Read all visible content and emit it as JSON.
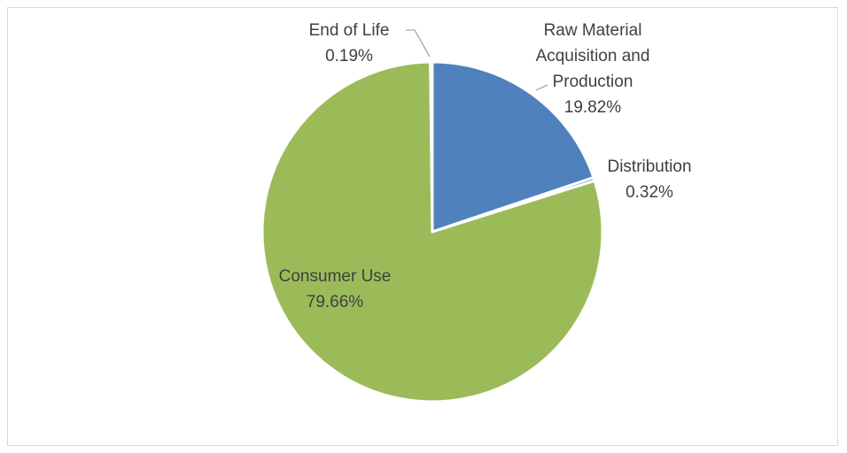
{
  "chart_data": {
    "type": "pie",
    "title": "",
    "categories": [
      "Raw Material Acquisition and Production",
      "Distribution",
      "Consumer Use",
      "End of Life"
    ],
    "values": [
      19.82,
      0.32,
      79.66,
      0.19
    ],
    "value_labels": [
      "19.82%",
      "0.32%",
      "79.66%",
      "0.19%"
    ],
    "colors": [
      "#4F81BD",
      "#4F81BD",
      "#9BBB59",
      "#9BBB59"
    ],
    "start_angle_deg": 0,
    "direction": "clockwise",
    "legend": "none",
    "label_lines": [
      [
        "Raw Material",
        "Acquisition and",
        "Production",
        "19.82%"
      ],
      [
        "Distribution",
        "0.32%"
      ],
      [
        "Consumer Use",
        "79.66%"
      ],
      [
        "End of Life",
        "0.19%"
      ]
    ]
  }
}
